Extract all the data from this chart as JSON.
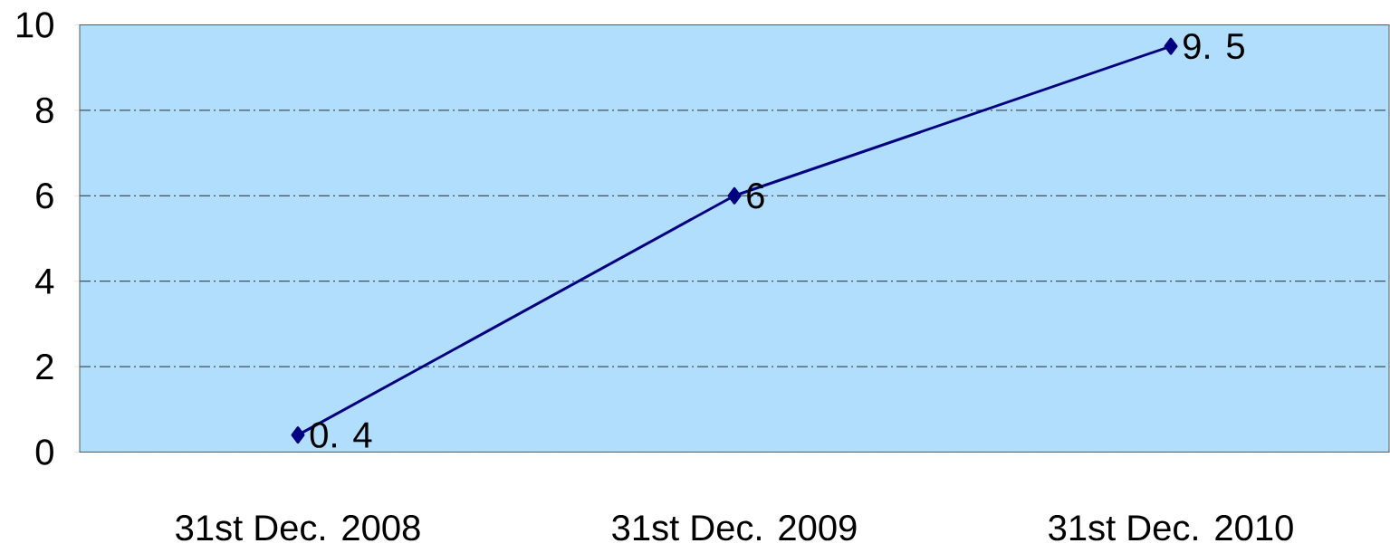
{
  "chart_data": {
    "type": "line",
    "categories": [
      "31st   Dec. 2008",
      "31st   Dec. 2009",
      "31st   Dec. 2010"
    ],
    "values": [
      0.4,
      6,
      9.5
    ],
    "value_labels": [
      "0. 4",
      "6",
      "9. 5"
    ],
    "color": "#000080",
    "ylim": [
      0,
      10
    ],
    "yticks": [
      0,
      2,
      4,
      6,
      8,
      10
    ],
    "grid": "y",
    "marker": "diamond",
    "line_style": "solid"
  }
}
